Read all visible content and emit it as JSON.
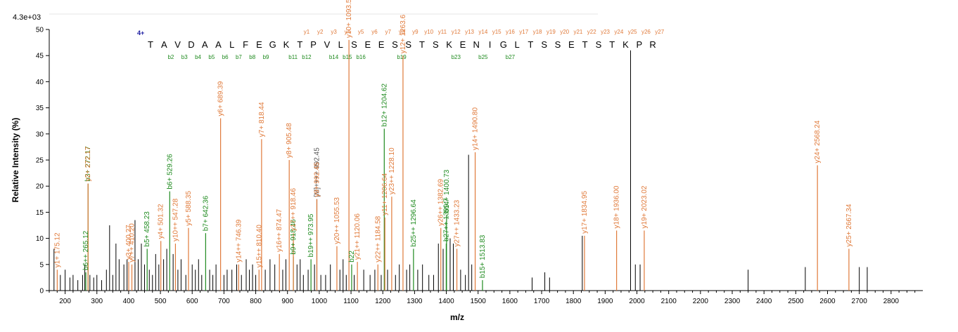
{
  "chart_data": {
    "type": "bar",
    "subtype": "mass-spectrum",
    "scale_label": "4.3e+03",
    "xlabel": "m/z",
    "ylabel": "Relative   Intensity (%)",
    "xlim": [
      150,
      2900
    ],
    "ylim": [
      0,
      50
    ],
    "x_ticks": [
      200,
      300,
      400,
      500,
      600,
      700,
      800,
      900,
      1000,
      1100,
      1200,
      1300,
      1400,
      1500,
      1600,
      1700,
      1800,
      1900,
      2000,
      2100,
      2200,
      2300,
      2400,
      2500,
      2600,
      2700,
      2800
    ],
    "y_ticks": [
      0,
      5,
      10,
      15,
      20,
      25,
      30,
      35,
      40,
      45,
      50
    ],
    "grid": false,
    "colors": {
      "y_ion": "#e07a3a",
      "b_ion": "#1e8a1e",
      "precursor": "#555555",
      "other": "#000000",
      "charge": "#1a1aa0"
    },
    "sequence": {
      "charge_label": "4+",
      "residues": [
        "T",
        "A",
        "V",
        "D",
        "A",
        "A",
        "L",
        "F",
        "E",
        "G",
        "K",
        "T",
        "P",
        "V",
        "L",
        "S",
        "E",
        "E",
        "S",
        "S",
        "T",
        "S",
        "K",
        "E",
        "N",
        "I",
        "G",
        "L",
        "T",
        "S",
        "S",
        "E",
        "T",
        "S",
        "T",
        "K",
        "P",
        "R"
      ],
      "y_labels": [
        "y27",
        "y26",
        "y25",
        "y24",
        "y23",
        "y22",
        "y21",
        "y20",
        "y19",
        "y18",
        "y17",
        "y16",
        "y15",
        "y14",
        "y13",
        "y12",
        "y11",
        "y10",
        "y9",
        "y8",
        "y7",
        "y6",
        "y5",
        "y4",
        "y3",
        "y2",
        "y1"
      ],
      "b_labels": [
        "b2",
        "b3",
        "b4",
        "b5",
        "b6",
        "b7",
        "b8",
        "b9",
        "b11",
        "b12",
        "b14",
        "b15",
        "b16",
        "b19",
        "b23",
        "b25",
        "b27"
      ]
    },
    "annotated_peaks": [
      {
        "label": "y1+ 175.12",
        "mz": 175.12,
        "intensity": 4.0,
        "ion": "y"
      },
      {
        "label": "b3+ 272.17",
        "mz": 272.17,
        "intensity": 20.5,
        "ion": "b"
      },
      {
        "label": "y2+ 272.17",
        "mz": 272.17,
        "intensity": 20.5,
        "ion": "y"
      },
      {
        "label": "b6++ 265.12",
        "mz": 265.12,
        "intensity": 3.5,
        "ion": "b"
      },
      {
        "label": "y3+ 400.27",
        "mz": 400.27,
        "intensity": 5.5,
        "ion": "y"
      },
      {
        "label": "y7++ 410.20",
        "mz": 410.2,
        "intensity": 5.0,
        "ion": "y"
      },
      {
        "label": "b5+ 458.23",
        "mz": 458.23,
        "intensity": 8.0,
        "ion": "b"
      },
      {
        "label": "y4+ 501.32",
        "mz": 501.32,
        "intensity": 9.5,
        "ion": "y"
      },
      {
        "label": "b6+ 529.26",
        "mz": 529.26,
        "intensity": 19.0,
        "ion": "b"
      },
      {
        "label": "y10++ 547.28",
        "mz": 547.28,
        "intensity": 9.0,
        "ion": "y"
      },
      {
        "label": "y5+ 588.35",
        "mz": 588.35,
        "intensity": 12.0,
        "ion": "y"
      },
      {
        "label": "b7+ 642.36",
        "mz": 642.36,
        "intensity": 11.0,
        "ion": "b"
      },
      {
        "label": "y6+ 689.39",
        "mz": 689.39,
        "intensity": 33.0,
        "ion": "y"
      },
      {
        "label": "y14++ 746.39",
        "mz": 746.39,
        "intensity": 5.0,
        "ion": "y"
      },
      {
        "label": "y7+ 818.44",
        "mz": 818.44,
        "intensity": 29.0,
        "ion": "y"
      },
      {
        "label": "y15++ 810.40",
        "mz": 810.4,
        "intensity": 4.0,
        "ion": "y"
      },
      {
        "label": "y16++ 874.47",
        "mz": 874.47,
        "intensity": 7.0,
        "ion": "y"
      },
      {
        "label": "y8+ 905.48",
        "mz": 905.48,
        "intensity": 25.0,
        "ion": "y"
      },
      {
        "label": "b9+ 918.46",
        "mz": 918.46,
        "intensity": 6.5,
        "ion": "b"
      },
      {
        "label": "y17++ 918.46",
        "mz": 918.46,
        "intensity": 11.0,
        "ion": "y"
      },
      {
        "label": "[M]++++ 992.45",
        "mz": 992.45,
        "intensity": 17.5,
        "ion": "precursor"
      },
      {
        "label": "y9+ 992.45",
        "mz": 992.45,
        "intensity": 17.5,
        "ion": "y"
      },
      {
        "label": "b19++ 973.95",
        "mz": 973.95,
        "intensity": 6.0,
        "ion": "b"
      },
      {
        "label": "y20++ 1055.53",
        "mz": 1055.53,
        "intensity": 8.5,
        "ion": "y"
      },
      {
        "label": "y10+ 1093.5",
        "mz": 1093.5,
        "intensity": 48.0,
        "ion": "y"
      },
      {
        "label": "y21++ 1120.06",
        "mz": 1120.06,
        "intensity": 5.5,
        "ion": "y"
      },
      {
        "label": "b22",
        "mz": 1102,
        "intensity": 5.0,
        "ion": "b"
      },
      {
        "label": "y22++ 1184.58",
        "mz": 1184.58,
        "intensity": 5.0,
        "ion": "y"
      },
      {
        "label": "b12+ 1204.62",
        "mz": 1204.62,
        "intensity": 31.0,
        "ion": "b"
      },
      {
        "label": "y11+ 1206.64",
        "mz": 1206.64,
        "intensity": 14.0,
        "ion": "y"
      },
      {
        "label": "y23++ 1228.10",
        "mz": 1228.1,
        "intensity": 18.0,
        "ion": "y"
      },
      {
        "label": "y12+ 1263.6",
        "mz": 1263.6,
        "intensity": 45.0,
        "ion": "y"
      },
      {
        "label": "b25++ 1296.64",
        "mz": 1296.64,
        "intensity": 8.0,
        "ion": "b"
      },
      {
        "label": "b27++ 1399.7",
        "mz": 1399.7,
        "intensity": 9.0,
        "ion": "b"
      },
      {
        "label": "y26++ 1382.69",
        "mz": 1382.69,
        "intensity": 12.0,
        "ion": "y"
      },
      {
        "label": "b14+ 1400.73",
        "mz": 1400.73,
        "intensity": 14.5,
        "ion": "b"
      },
      {
        "label": "y27++ 1433.23",
        "mz": 1433.23,
        "intensity": 8.0,
        "ion": "y"
      },
      {
        "label": "y14+ 1490.80",
        "mz": 1490.8,
        "intensity": 26.5,
        "ion": "y"
      },
      {
        "label": "b15+ 1513.83",
        "mz": 1513.83,
        "intensity": 2.0,
        "ion": "b"
      },
      {
        "label": "y17+ 1834.95",
        "mz": 1834.95,
        "intensity": 10.5,
        "ion": "y"
      },
      {
        "label": "y18+ 1936.00",
        "mz": 1936.0,
        "intensity": 11.5,
        "ion": "y"
      },
      {
        "label": "y19+ 2023.02",
        "mz": 2023.02,
        "intensity": 11.5,
        "ion": "y"
      },
      {
        "label": "y24+ 2568.24",
        "mz": 2568.24,
        "intensity": 24.0,
        "ion": "y"
      },
      {
        "label": "y25+ 2667.34",
        "mz": 2667.34,
        "intensity": 8.0,
        "ion": "y"
      }
    ],
    "other_peaks": [
      [
        165,
        8
      ],
      [
        185,
        3
      ],
      [
        200,
        4
      ],
      [
        215,
        2.5
      ],
      [
        225,
        3
      ],
      [
        240,
        2
      ],
      [
        255,
        3
      ],
      [
        262,
        5
      ],
      [
        278,
        3
      ],
      [
        290,
        2.5
      ],
      [
        300,
        3
      ],
      [
        315,
        2
      ],
      [
        330,
        4
      ],
      [
        340,
        12.5
      ],
      [
        350,
        3
      ],
      [
        360,
        9
      ],
      [
        370,
        6
      ],
      [
        385,
        5
      ],
      [
        395,
        6
      ],
      [
        420,
        13.5
      ],
      [
        430,
        6
      ],
      [
        440,
        9
      ],
      [
        450,
        5
      ],
      [
        465,
        4
      ],
      [
        475,
        3
      ],
      [
        485,
        7
      ],
      [
        495,
        5
      ],
      [
        510,
        6
      ],
      [
        520,
        8
      ],
      [
        540,
        7
      ],
      [
        555,
        4
      ],
      [
        565,
        6
      ],
      [
        580,
        3
      ],
      [
        600,
        5
      ],
      [
        610,
        4
      ],
      [
        620,
        6
      ],
      [
        630,
        3
      ],
      [
        655,
        4
      ],
      [
        665,
        3
      ],
      [
        675,
        5
      ],
      [
        700,
        3
      ],
      [
        710,
        4
      ],
      [
        725,
        4
      ],
      [
        740,
        5
      ],
      [
        755,
        3
      ],
      [
        770,
        6
      ],
      [
        780,
        4
      ],
      [
        790,
        5
      ],
      [
        800,
        3
      ],
      [
        830,
        4
      ],
      [
        845,
        6
      ],
      [
        860,
        5
      ],
      [
        885,
        4
      ],
      [
        895,
        6
      ],
      [
        930,
        5
      ],
      [
        940,
        6
      ],
      [
        950,
        3
      ],
      [
        965,
        4
      ],
      [
        985,
        5
      ],
      [
        1005,
        3
      ],
      [
        1020,
        3
      ],
      [
        1035,
        5
      ],
      [
        1065,
        4
      ],
      [
        1075,
        6
      ],
      [
        1085,
        3
      ],
      [
        1110,
        3
      ],
      [
        1140,
        4
      ],
      [
        1160,
        3
      ],
      [
        1175,
        4
      ],
      [
        1195,
        3
      ],
      [
        1215,
        4
      ],
      [
        1240,
        3
      ],
      [
        1252,
        5
      ],
      [
        1275,
        4
      ],
      [
        1285,
        5
      ],
      [
        1310,
        4
      ],
      [
        1325,
        5
      ],
      [
        1345,
        3
      ],
      [
        1360,
        3
      ],
      [
        1375,
        9
      ],
      [
        1390,
        8
      ],
      [
        1412,
        10
      ],
      [
        1422,
        9
      ],
      [
        1445,
        4
      ],
      [
        1460,
        3
      ],
      [
        1470,
        26
      ],
      [
        1480,
        5
      ],
      [
        1670,
        2.5
      ],
      [
        1710,
        3.5
      ],
      [
        1725,
        2.5
      ],
      [
        1828,
        10.5
      ],
      [
        1980,
        46
      ],
      [
        1995,
        5
      ],
      [
        2010,
        5
      ],
      [
        2350,
        4
      ],
      [
        2530,
        4.5
      ],
      [
        2700,
        4.5
      ],
      [
        2725,
        4.5
      ]
    ]
  }
}
